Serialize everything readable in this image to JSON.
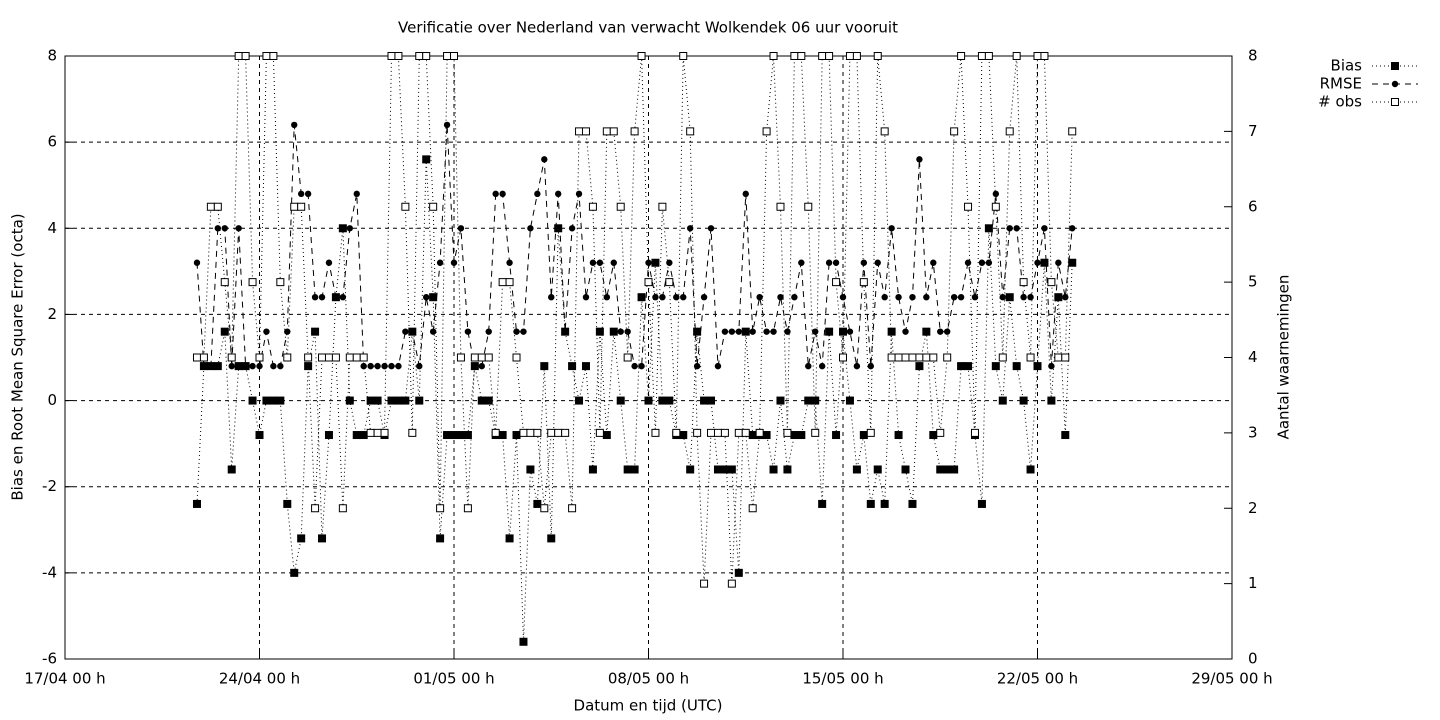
{
  "chart_data": {
    "type": "line",
    "title": "Verificatie over Nederland van verwacht Wolkendek 06 uur vooruit",
    "x_label": "Datum en tijd (UTC)",
    "y_label": "Bias en Root Mean Square Error (octa)",
    "y2_label": "Aantal waarnemingen",
    "xlim": [
      "17/04 00 h",
      "29/05 00 h"
    ],
    "xticks": [
      "17/04 00 h",
      "24/04 00 h",
      "01/05 00 h",
      "08/05 00 h",
      "15/05 00 h",
      "22/05 00 h",
      "29/05 00 h"
    ],
    "ylim": [
      -6,
      8
    ],
    "yticks": [
      -6,
      -4,
      -2,
      0,
      2,
      4,
      6,
      8
    ],
    "y2lim": [
      0,
      8
    ],
    "y2ticks": [
      0,
      1,
      2,
      3,
      4,
      5,
      6,
      7,
      8
    ],
    "grid": true,
    "legend": "top-right-outside",
    "x": [
      "21/04 18 h",
      "22/04 00 h",
      "22/04 06 h",
      "22/04 12 h",
      "22/04 18 h",
      "23/04 00 h",
      "23/04 06 h",
      "23/04 12 h",
      "23/04 18 h",
      "24/04 00 h",
      "24/04 06 h",
      "24/04 12 h",
      "24/04 18 h",
      "25/04 00 h",
      "25/04 06 h",
      "25/04 12 h",
      "25/04 18 h",
      "26/04 00 h",
      "26/04 06 h",
      "26/04 12 h",
      "26/04 18 h",
      "27/04 00 h",
      "27/04 06 h",
      "27/04 12 h",
      "27/04 18 h",
      "28/04 00 h",
      "28/04 06 h",
      "28/04 12 h",
      "28/04 18 h",
      "29/04 00 h",
      "29/04 06 h",
      "29/04 12 h",
      "29/04 18 h",
      "30/04 00 h",
      "30/04 06 h",
      "30/04 12 h",
      "30/04 18 h",
      "01/05 00 h",
      "01/05 06 h",
      "01/05 12 h",
      "01/05 18 h",
      "02/05 00 h",
      "02/05 06 h",
      "02/05 12 h",
      "02/05 18 h",
      "03/05 00 h",
      "03/05 06 h",
      "03/05 12 h",
      "03/05 18 h",
      "04/05 00 h",
      "04/05 06 h",
      "04/05 12 h",
      "04/05 18 h",
      "05/05 00 h",
      "05/05 06 h",
      "05/05 12 h",
      "05/05 18 h",
      "06/05 00 h",
      "06/05 06 h",
      "06/05 12 h",
      "06/05 18 h",
      "07/05 00 h",
      "07/05 06 h",
      "07/05 12 h",
      "07/05 18 h",
      "08/05 00 h",
      "08/05 06 h",
      "08/05 12 h",
      "08/05 18 h",
      "09/05 00 h",
      "09/05 06 h",
      "09/05 12 h",
      "09/05 18 h",
      "10/05 00 h",
      "10/05 06 h",
      "10/05 12 h",
      "10/05 18 h",
      "11/05 00 h",
      "11/05 06 h",
      "11/05 12 h",
      "11/05 18 h",
      "12/05 00 h",
      "12/05 06 h",
      "12/05 12 h",
      "12/05 18 h",
      "13/05 00 h",
      "13/05 06 h",
      "13/05 12 h",
      "13/05 18 h",
      "14/05 00 h",
      "14/05 06 h",
      "14/05 12 h",
      "14/05 18 h",
      "15/05 00 h",
      "15/05 06 h",
      "15/05 12 h",
      "15/05 18 h",
      "16/05 00 h",
      "16/05 06 h",
      "16/05 12 h",
      "16/05 18 h",
      "17/05 00 h",
      "17/05 06 h",
      "17/05 12 h",
      "17/05 18 h",
      "18/05 00 h",
      "18/05 06 h",
      "18/05 12 h",
      "18/05 18 h",
      "19/05 00 h",
      "19/05 06 h",
      "19/05 12 h",
      "19/05 18 h",
      "20/05 00 h",
      "20/05 06 h",
      "20/05 12 h",
      "20/05 18 h",
      "21/05 00 h",
      "21/05 06 h",
      "21/05 12 h",
      "21/05 18 h",
      "22/05 00 h",
      "22/05 06 h",
      "22/05 12 h",
      "22/05 18 h",
      "23/05 00 h",
      "23/05 06 h"
    ],
    "series": [
      {
        "name": "Bias",
        "color": "#000000",
        "line": "dotted",
        "marker": "square",
        "values": [
          -2.4,
          0.8,
          0.8,
          0.8,
          1.6,
          -1.6,
          0.8,
          0.8,
          0,
          -0.8,
          0,
          0,
          0,
          -2.4,
          -4,
          -3.2,
          0.8,
          1.6,
          -3.2,
          -0.8,
          2.4,
          4,
          0,
          -0.8,
          -0.8,
          0,
          0,
          -0.8,
          0,
          0,
          0,
          1.6,
          0,
          5.6,
          2.4,
          -3.2,
          -0.8,
          -0.8,
          -0.8,
          -0.8,
          0.8,
          0,
          0,
          -0.8,
          -0.8,
          -3.2,
          -0.8,
          -5.6,
          -1.6,
          -2.4,
          0.8,
          -3.2,
          4,
          1.6,
          0.8,
          0,
          0.8,
          -1.6,
          1.6,
          -0.8,
          1.6,
          0,
          -1.6,
          -1.6,
          2.4,
          0,
          3.2,
          0,
          0,
          -0.8,
          -0.8,
          -1.6,
          1.6,
          0,
          0,
          -1.6,
          -1.6,
          -1.6,
          -4,
          1.6,
          -0.8,
          -0.8,
          -0.8,
          -1.6,
          0,
          -1.6,
          -0.8,
          -0.8,
          0,
          0,
          -2.4,
          1.6,
          -0.8,
          1.6,
          0,
          -1.6,
          -0.8,
          -2.4,
          -1.6,
          -2.4,
          1.6,
          -0.8,
          -1.6,
          -2.4,
          0.8,
          1.6,
          -0.8,
          -1.6,
          -1.6,
          -1.6,
          0.8,
          0.8,
          -0.8,
          -2.4,
          4,
          0.8,
          0,
          2.4,
          0.8,
          0,
          -1.6,
          0.8,
          3.2,
          0,
          2.4,
          -0.8,
          3.2
        ]
      },
      {
        "name": "RMSE",
        "color": "#000000",
        "line": "dashed",
        "marker": "circle",
        "values": [
          3.2,
          0.8,
          0.8,
          4,
          4,
          0.8,
          4,
          0.8,
          0.8,
          0.8,
          1.6,
          0.8,
          0.8,
          1.6,
          6.4,
          4.8,
          4.8,
          2.4,
          2.4,
          3.2,
          2.4,
          2.4,
          4,
          4.8,
          0.8,
          0.8,
          0.8,
          0.8,
          0.8,
          0.8,
          1.6,
          1.6,
          0.8,
          2.4,
          1.6,
          3.2,
          6.4,
          3.2,
          4,
          1.6,
          0.8,
          0.8,
          1.6,
          4.8,
          4.8,
          3.2,
          1.6,
          1.6,
          4,
          4.8,
          5.6,
          2.4,
          4.8,
          1.6,
          4,
          4.8,
          2.4,
          3.2,
          3.2,
          2.4,
          3.2,
          1.6,
          1.6,
          0.8,
          0.8,
          3.2,
          2.4,
          2.4,
          3.2,
          2.4,
          2.4,
          4,
          0.8,
          2.4,
          4,
          0.8,
          1.6,
          1.6,
          1.6,
          4.8,
          1.6,
          2.4,
          1.6,
          1.6,
          2.4,
          1.6,
          2.4,
          3.2,
          0.8,
          1.6,
          0.8,
          3.2,
          3.2,
          2.4,
          1.6,
          0.8,
          3.2,
          0.8,
          3.2,
          2.4,
          4,
          2.4,
          1.6,
          2.4,
          5.6,
          2.4,
          3.2,
          1.6,
          1.6,
          2.4,
          2.4,
          3.2,
          2.4,
          3.2,
          3.2,
          4.8,
          2.4,
          4,
          4,
          2.4,
          2.4,
          3.2,
          4,
          0.8,
          3.2,
          2.4,
          4
        ]
      },
      {
        "name": "# obs",
        "color": "#000000",
        "line": "dotted",
        "marker": "open-square",
        "axis": "y2",
        "values": [
          4,
          4,
          6,
          6,
          5,
          4,
          8,
          8,
          5,
          4,
          8,
          8,
          5,
          4,
          6,
          6,
          4,
          2,
          4,
          4,
          4,
          2,
          4,
          4,
          4,
          3,
          3,
          3,
          8,
          8,
          6,
          3,
          8,
          8,
          6,
          2,
          8,
          8,
          4,
          2,
          4,
          4,
          4,
          3,
          5,
          5,
          4,
          3,
          3,
          3,
          2,
          3,
          3,
          3,
          2,
          7,
          7,
          6,
          3,
          7,
          7,
          6,
          4,
          7,
          8,
          5,
          3,
          6,
          5,
          3,
          8,
          7,
          3,
          1,
          3,
          3,
          3,
          1,
          3,
          3,
          2,
          3,
          7,
          8,
          6,
          3,
          8,
          8,
          6,
          3,
          8,
          8,
          5,
          4,
          8,
          8,
          5,
          3,
          8,
          7,
          4,
          4,
          4,
          4,
          4,
          4,
          4,
          3,
          4,
          7,
          8,
          6,
          3,
          8,
          8,
          6,
          4,
          7,
          8,
          5,
          4,
          8,
          8,
          5,
          4,
          4,
          7
        ]
      }
    ]
  }
}
